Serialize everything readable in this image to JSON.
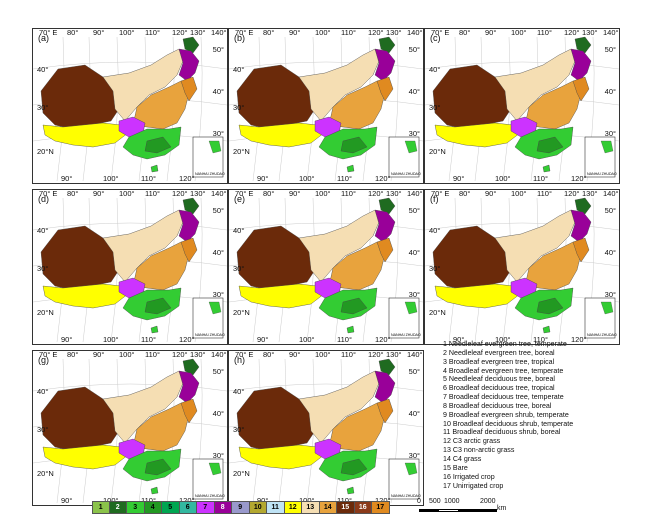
{
  "panels": [
    {
      "label": "(a)"
    },
    {
      "label": "(b)"
    },
    {
      "label": "(c)"
    },
    {
      "label": "(d)"
    },
    {
      "label": "(e)"
    },
    {
      "label": "(f)"
    },
    {
      "label": "(g)"
    },
    {
      "label": "(h)"
    }
  ],
  "axis_ticks": {
    "top": [
      "70° E",
      "80°",
      "90°",
      "100°",
      "110°",
      "120°",
      "130°",
      "140°"
    ],
    "bottom": [
      "90°",
      "100°",
      "110°",
      "120°"
    ],
    "left": [
      "40°",
      "30°",
      "20°N"
    ],
    "right": [
      "50°",
      "40°",
      "30°"
    ]
  },
  "inset_caption": "NANHAI ZHUDAO",
  "legend": [
    {
      "num": "1",
      "text": "Needleleaf evergreen tree, temperate",
      "color": "#8bc34a"
    },
    {
      "num": "2",
      "text": "Needleleaf evergreen tree, boreal",
      "color": "#1f6b20"
    },
    {
      "num": "3",
      "text": "Broadleaf evergreen tree, tropical",
      "color": "#33cc33"
    },
    {
      "num": "4",
      "text": "Broadleaf evergreen tree, temperate",
      "color": "#229922"
    },
    {
      "num": "5",
      "text": "Needleleaf deciduous tree, boreal",
      "color": "#00a651"
    },
    {
      "num": "6",
      "text": "Broadleaf deciduous tree, tropical",
      "color": "#33b8a0"
    },
    {
      "num": "7",
      "text": "Broadleaf deciduous tree, temperate",
      "color": "#cc33ff"
    },
    {
      "num": "8",
      "text": "Broadleaf deciduous tree, boreal",
      "color": "#990099"
    },
    {
      "num": "9",
      "text": "Broadleaf evergreen shrub, temperate",
      "color": "#9999cc"
    },
    {
      "num": "10",
      "text": "Broadleaf deciduous shrub, temperate",
      "color": "#b3a830"
    },
    {
      "num": "11",
      "text": "Broadleaf deciduous shrub, boreal",
      "color": "#bfe3f5"
    },
    {
      "num": "12",
      "text": "C3 arctic grass",
      "color": "#ffff00"
    },
    {
      "num": "13",
      "text": "C3 non-arctic grass",
      "color": "#f5deb3"
    },
    {
      "num": "14",
      "text": "C4 grass",
      "color": "#e8a33d"
    },
    {
      "num": "15",
      "text": "Bare",
      "color": "#6b2a0a"
    },
    {
      "num": "16",
      "text": "Irrigated crop",
      "color": "#8b3a1a"
    },
    {
      "num": "17",
      "text": "Unirrigated crop",
      "color": "#e08a20"
    }
  ],
  "scale": {
    "labels": [
      "0",
      "500",
      "1000",
      "2000"
    ],
    "unit": "km"
  }
}
